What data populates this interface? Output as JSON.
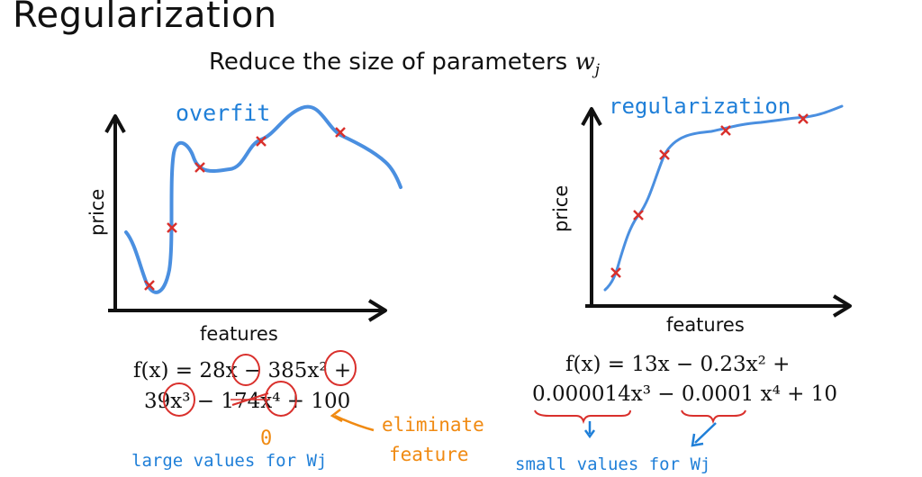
{
  "title": "Regularization",
  "subtitle": {
    "text": "Reduce the size of parameters ",
    "var": "w",
    "sub": "j"
  },
  "left_plot": {
    "annotation": "overfit",
    "y_axis_label": "price",
    "x_axis_label": "features",
    "curve_color": "#4a8fe0",
    "marker_color": "#d9302c"
  },
  "right_plot": {
    "annotation": "regularization",
    "y_axis_label": "price",
    "x_axis_label": "features",
    "curve_color": "#4a8fe0",
    "marker_color": "#d9302c"
  },
  "left_equation": {
    "line1": "f(x) = 28x − 385x² +",
    "line2": "39x³ − 174x⁴ + 100",
    "zero_label": "0",
    "circle_color": "#d9302c"
  },
  "right_equation": {
    "line1": "f(x) = 13x − 0.23x² +",
    "line2": "0.000014x³ − 0.0001 x⁴ + 10"
  },
  "notes": {
    "eliminate_line1": "eliminate",
    "eliminate_line2": "feature",
    "large_values": "large values for Wj",
    "small_values": "small values for Wj",
    "blue": "#1f7fd8",
    "orange": "#f08a12"
  }
}
